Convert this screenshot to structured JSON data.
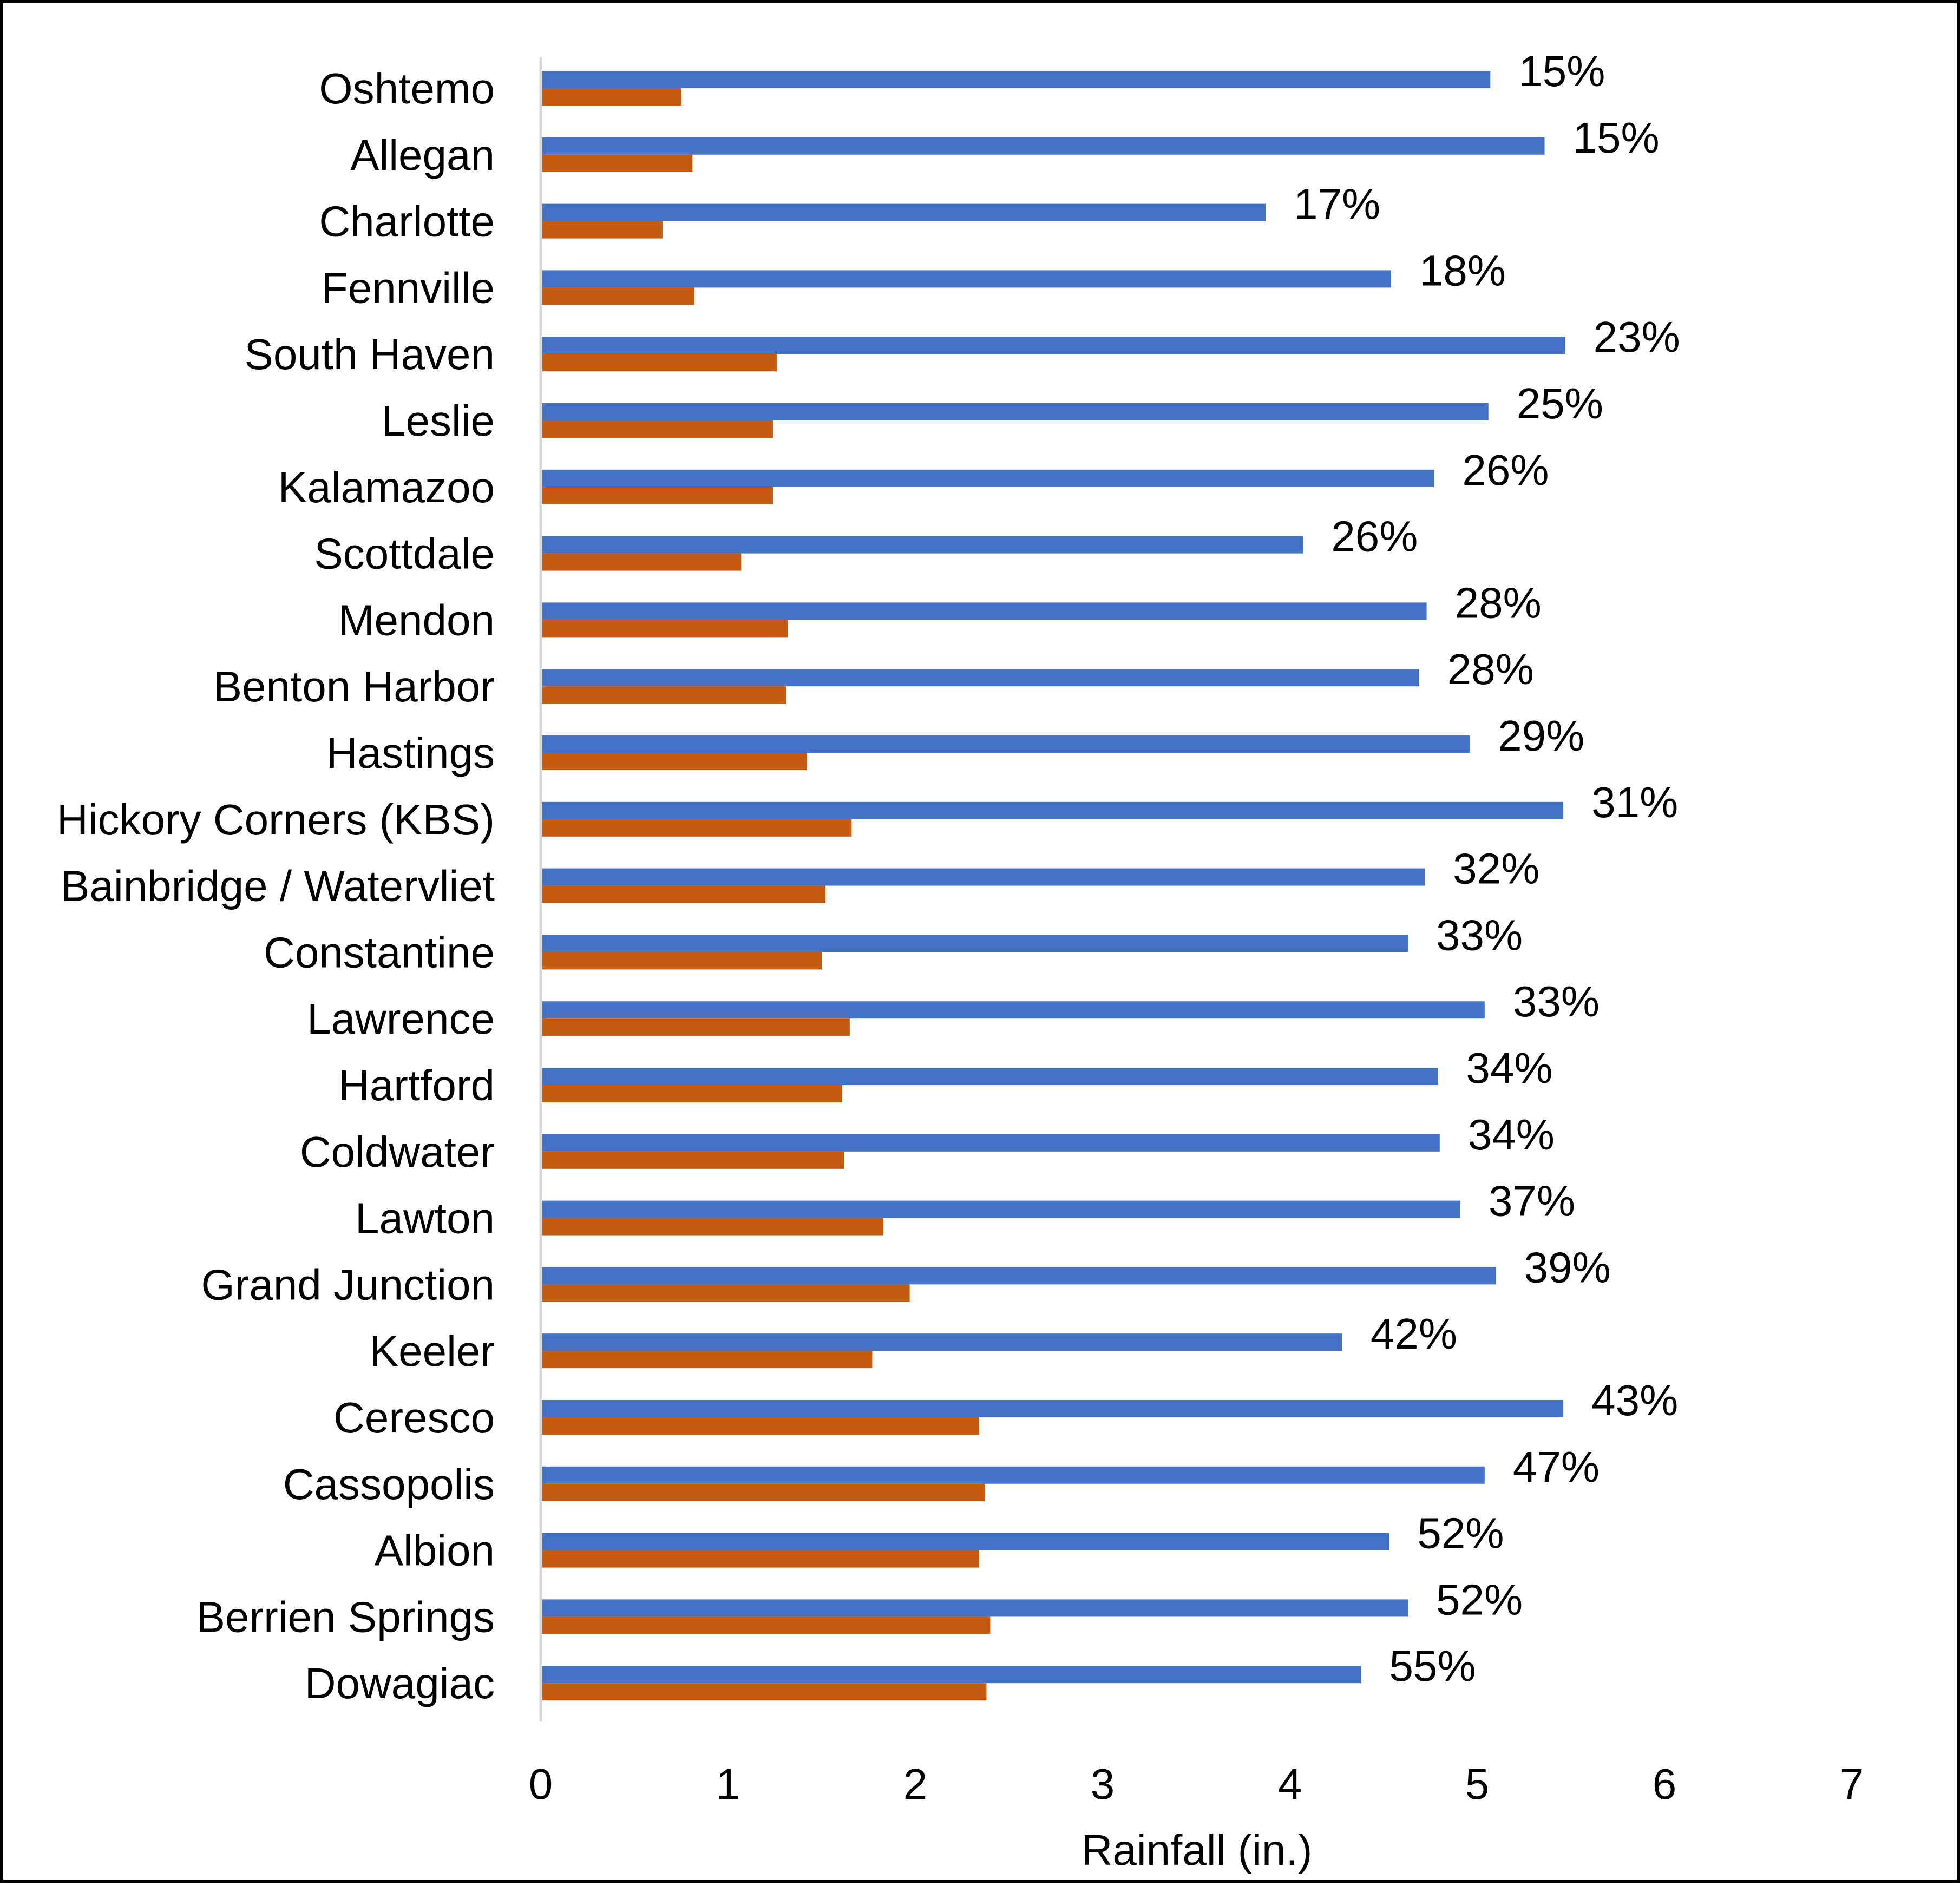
{
  "chart_data": {
    "type": "bar",
    "orientation": "horizontal",
    "categories": [
      "Oshtemo",
      "Allegan",
      "Charlotte",
      "Fennville",
      "South Haven",
      "Leslie",
      "Kalamazoo",
      "Scottdale",
      "Mendon",
      "Benton Harbor",
      "Hastings",
      "Hickory Corners (KBS)",
      "Bainbridge / Watervliet",
      "Constantine",
      "Lawrence",
      "Hartford",
      "Coldwater",
      "Lawton",
      "Grand Junction",
      "Keeler",
      "Ceresco",
      "Cassopolis",
      "Albion",
      "Berrien Springs",
      "Dowagiac"
    ],
    "series": [
      {
        "color": "#4472C4",
        "values": [
          5.07,
          5.36,
          3.87,
          4.54,
          5.47,
          5.06,
          4.77,
          4.07,
          4.73,
          4.69,
          4.96,
          5.46,
          4.72,
          4.63,
          5.04,
          4.79,
          4.8,
          4.91,
          5.1,
          4.28,
          5.46,
          5.04,
          4.53,
          4.63,
          4.38
        ],
        "data_labels": [
          "15%",
          "15%",
          "17%",
          "18%",
          "23%",
          "25%",
          "26%",
          "26%",
          "28%",
          "28%",
          "29%",
          "31%",
          "32%",
          "33%",
          "33%",
          "34%",
          "34%",
          "37%",
          "39%",
          "42%",
          "43%",
          "47%",
          "52%",
          "52%",
          "55%"
        ]
      },
      {
        "color": "#C55A11",
        "values": [
          0.75,
          0.81,
          0.65,
          0.82,
          1.26,
          1.24,
          1.24,
          1.07,
          1.32,
          1.31,
          1.42,
          1.66,
          1.52,
          1.5,
          1.65,
          1.61,
          1.62,
          1.83,
          1.97,
          1.77,
          2.34,
          2.37,
          2.34,
          2.4,
          2.38
        ]
      }
    ],
    "xlabel": "Rainfall (in.)",
    "xlim": [
      0,
      7
    ],
    "xticks": [
      "0",
      "1",
      "2",
      "3",
      "4",
      "5",
      "6",
      "7"
    ],
    "grid": false,
    "legend": "none"
  }
}
